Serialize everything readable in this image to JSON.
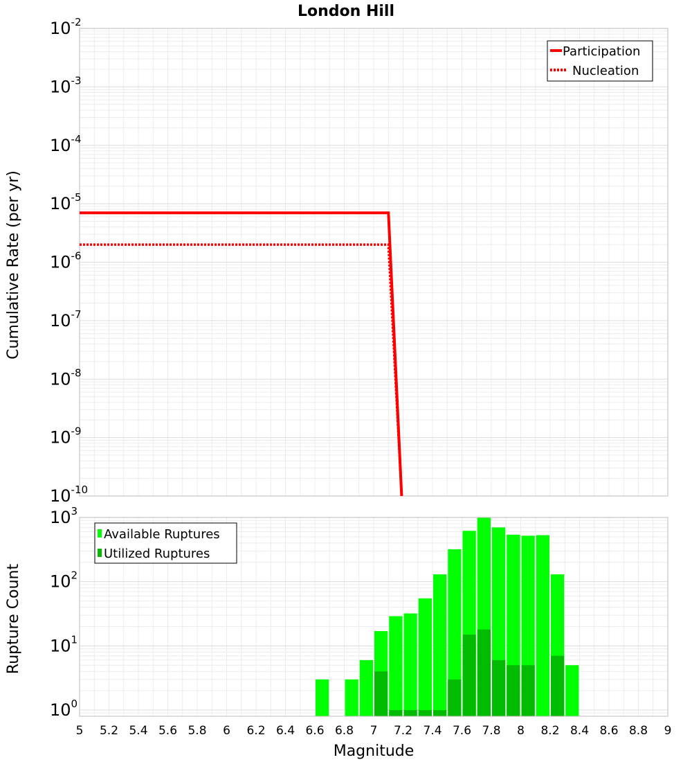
{
  "chart_data": [
    {
      "type": "line",
      "title": "London Hill",
      "xlabel": "",
      "ylabel": "Cumulative Rate (per yr)",
      "xlim": [
        5,
        9
      ],
      "ylim": [
        1e-10,
        0.01
      ],
      "yscale": "log",
      "grid": true,
      "legend_position": "top-right",
      "yticks": [
        {
          "base": "10",
          "exp": "-10",
          "value": 1e-10
        },
        {
          "base": "10",
          "exp": "-9",
          "value": 1e-09
        },
        {
          "base": "10",
          "exp": "-8",
          "value": 1e-08
        },
        {
          "base": "10",
          "exp": "-7",
          "value": 1e-07
        },
        {
          "base": "10",
          "exp": "-6",
          "value": 1e-06
        },
        {
          "base": "10",
          "exp": "-5",
          "value": 1e-05
        },
        {
          "base": "10",
          "exp": "-4",
          "value": 0.0001
        },
        {
          "base": "10",
          "exp": "-3",
          "value": 0.001
        },
        {
          "base": "10",
          "exp": "-2",
          "value": 0.01
        }
      ],
      "series": [
        {
          "name": "Participation",
          "style": "solid",
          "color": "#ff0000",
          "x": [
            5.0,
            7.1,
            7.19
          ],
          "y": [
            7e-06,
            7e-06,
            1e-10
          ]
        },
        {
          "name": "Nucleation",
          "style": "dotted",
          "color": "#ff0000",
          "x": [
            5.0,
            7.1,
            7.19
          ],
          "y": [
            2e-06,
            2e-06,
            1e-10
          ]
        }
      ]
    },
    {
      "type": "bar",
      "title": "",
      "xlabel": "Magnitude",
      "ylabel": "Rupture Count",
      "xlim": [
        5,
        9
      ],
      "ylim": [
        0.8,
        1000
      ],
      "yscale": "log",
      "grid": true,
      "legend_position": "top-left",
      "bar_width": 0.1,
      "yticks": [
        {
          "base": "10",
          "exp": "0",
          "value": 1
        },
        {
          "base": "10",
          "exp": "1",
          "value": 10
        },
        {
          "base": "10",
          "exp": "2",
          "value": 100
        },
        {
          "base": "10",
          "exp": "3",
          "value": 1000
        }
      ],
      "xticks": [
        "5",
        "5.2",
        "5.4",
        "5.6",
        "5.8",
        "6",
        "6.2",
        "6.4",
        "6.6",
        "6.8",
        "7",
        "7.2",
        "7.4",
        "7.6",
        "7.8",
        "8",
        "8.2",
        "8.4",
        "8.6",
        "8.8",
        "9"
      ],
      "x": [
        6.65,
        6.85,
        6.95,
        7.05,
        7.15,
        7.25,
        7.35,
        7.45,
        7.55,
        7.65,
        7.75,
        7.85,
        7.95,
        8.05,
        8.15,
        8.25,
        8.35
      ],
      "series": [
        {
          "name": "Available Ruptures",
          "color": "#00ff00",
          "values": [
            3,
            3,
            6,
            17,
            29,
            32,
            55,
            130,
            320,
            620,
            1000,
            700,
            540,
            520,
            530,
            130,
            5
          ]
        },
        {
          "name": "Utilized Ruptures",
          "color": "#00bb00",
          "values": [
            0,
            0,
            0,
            4,
            1,
            1,
            1,
            1,
            3,
            15,
            18,
            6,
            5,
            5,
            0,
            7,
            0
          ]
        }
      ]
    }
  ]
}
